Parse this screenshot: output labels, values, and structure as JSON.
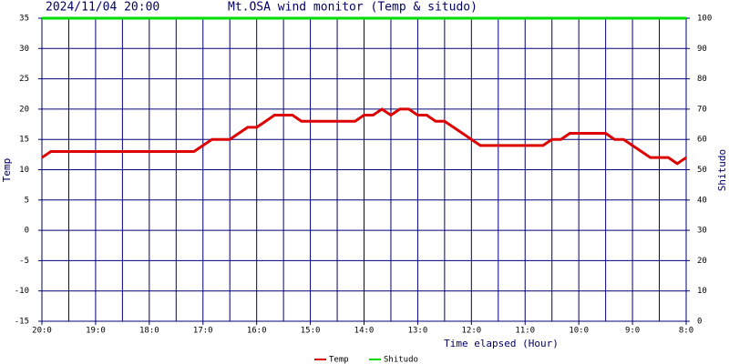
{
  "chart_data": {
    "type": "line",
    "subtitle": "2024/11/04 20:00",
    "title": "Mt.OSA wind monitor (Temp & situdo)",
    "xlabel": "Time elapsed (Hour)",
    "ylabel": "Temp",
    "y2label": "Shitudo",
    "categories": [
      "20:0",
      null,
      null,
      null,
      null,
      null,
      "19:0",
      null,
      null,
      null,
      null,
      null,
      "18:0",
      null,
      null,
      null,
      null,
      null,
      "17:0",
      null,
      null,
      null,
      null,
      null,
      "16:0",
      null,
      null,
      null,
      null,
      null,
      "15:0",
      null,
      null,
      null,
      null,
      null,
      "14:0",
      null,
      null,
      null,
      null,
      null,
      "13:0",
      null,
      null,
      null,
      null,
      null,
      "12:0",
      null,
      null,
      null,
      null,
      null,
      "11:0",
      null,
      null,
      null,
      null,
      null,
      "10:0",
      null,
      null,
      null,
      null,
      null,
      "9:0",
      null,
      null,
      null,
      null,
      null,
      "8:0"
    ],
    "series": [
      {
        "name": "Temp",
        "color": "#dd0000",
        "values": [
          12,
          13,
          13,
          13,
          13,
          13,
          13,
          13,
          13,
          13,
          13,
          13,
          13,
          13,
          13,
          13,
          13,
          13,
          14,
          15,
          15,
          15,
          16,
          17,
          17,
          18,
          19,
          19,
          19,
          18,
          18,
          18,
          18,
          18,
          18,
          18,
          19,
          19,
          20,
          19,
          20,
          20,
          19,
          19,
          18,
          18,
          17,
          16,
          15,
          14,
          14,
          14,
          14,
          14,
          14,
          14,
          14,
          15,
          15,
          16,
          16,
          16,
          16,
          16,
          15,
          15,
          14,
          13,
          12,
          12,
          12,
          11,
          12
        ]
      },
      {
        "name": "Shitudo",
        "color": "#00dd00",
        "axis": "y2",
        "values": [
          100,
          100,
          100,
          100,
          100,
          100,
          100,
          100,
          100,
          100,
          100,
          100,
          100,
          100,
          100,
          100,
          100,
          100,
          100,
          100,
          100,
          100,
          100,
          100,
          100,
          100,
          100,
          100,
          100,
          100,
          100,
          100,
          100,
          100,
          100,
          100,
          100,
          100,
          100,
          100,
          100,
          100,
          100,
          100,
          100,
          100,
          100,
          100,
          100,
          100,
          100,
          100,
          100,
          100,
          100,
          100,
          100,
          100,
          100,
          100,
          100,
          100,
          100,
          100,
          100,
          100,
          100,
          100,
          100,
          100,
          100,
          100,
          100
        ]
      }
    ],
    "ylim": [
      -15,
      35
    ],
    "yticks": [
      -15,
      -10,
      -5,
      0,
      5,
      10,
      15,
      20,
      25,
      30,
      35
    ],
    "y2lim": [
      0,
      100
    ],
    "y2ticks": [
      0,
      10,
      20,
      30,
      40,
      50,
      60,
      70,
      80,
      90,
      100
    ],
    "grid": true
  }
}
